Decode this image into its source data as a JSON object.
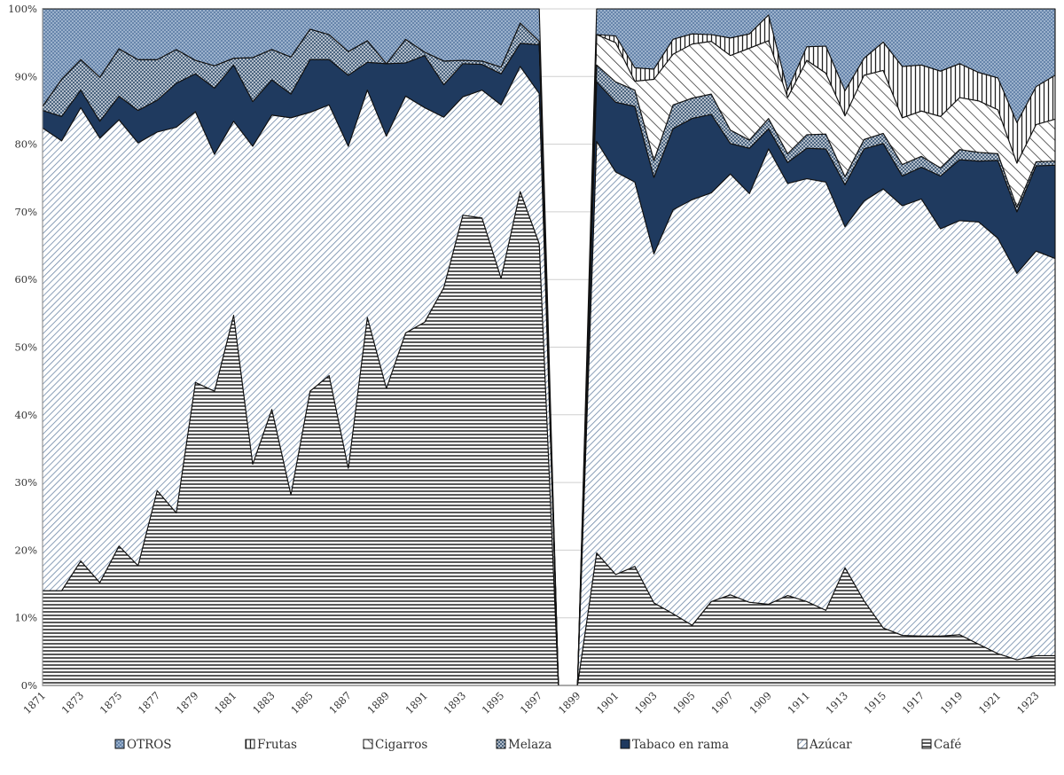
{
  "chart_data": {
    "type": "area",
    "stacked": true,
    "percent": true,
    "x": [
      1871,
      1872,
      1873,
      1874,
      1875,
      1876,
      1877,
      1878,
      1879,
      1880,
      1881,
      1882,
      1883,
      1884,
      1885,
      1886,
      1887,
      1888,
      1889,
      1890,
      1891,
      1892,
      1893,
      1894,
      1895,
      1896,
      1897,
      1898,
      1899,
      1900,
      1901,
      1902,
      1903,
      1904,
      1905,
      1906,
      1907,
      1908,
      1909,
      1910,
      1911,
      1912,
      1913,
      1914,
      1915,
      1916,
      1917,
      1918,
      1919,
      1920,
      1921,
      1922,
      1923,
      1924
    ],
    "x_tick_labels": [
      "1871",
      "1873",
      "1875",
      "1877",
      "1879",
      "1881",
      "1883",
      "1885",
      "1887",
      "1889",
      "1891",
      "1893",
      "1895",
      "1897",
      "1899",
      "1901",
      "1903",
      "1905",
      "1907",
      "1909",
      "1911",
      "1913",
      "1915",
      "1917",
      "1919",
      "1921",
      "1923"
    ],
    "gap": [
      1898,
      1899
    ],
    "ylim": [
      0,
      100
    ],
    "y_ticks": [
      "0%",
      "10%",
      "20%",
      "30%",
      "40%",
      "50%",
      "60%",
      "70%",
      "80%",
      "90%",
      "100%"
    ],
    "grid": true,
    "legend_position": "bottom",
    "series": [
      {
        "name": "Café",
        "color": "#1a1a1a",
        "values": [
          14,
          14,
          18.4,
          15.2,
          20.6,
          17.7,
          28.8,
          25.5,
          44.8,
          43.5,
          54.7,
          32.7,
          40.8,
          28.2,
          43.5,
          45.8,
          32.1,
          54.4,
          43.9,
          52.1,
          53.7,
          58.8,
          69.5,
          69.1,
          60.2,
          73.0,
          65.3,
          0,
          0,
          19.6,
          16.4,
          17.6,
          12.2,
          10.6,
          8.9,
          12.4,
          13.4,
          12.3,
          12.0,
          13.3,
          12.4,
          11.1,
          17.4,
          12.5,
          8.5,
          7.4,
          7.3,
          7.3,
          7.5,
          6.1,
          4.7,
          3.8,
          4.4,
          4.4
        ]
      },
      {
        "name": "Azúcar",
        "color": "#4e6f93",
        "values": [
          68.4,
          66.5,
          67.0,
          65.7,
          63.0,
          62.5,
          53.0,
          57.0,
          40.0,
          35.0,
          28.7,
          47.0,
          43.5,
          55.7,
          41.2,
          40.0,
          47.6,
          33.6,
          37.3,
          35.0,
          31.7,
          25.2,
          17.5,
          18.9,
          25.6,
          18.5,
          22.2,
          0,
          0,
          60.8,
          59.5,
          56.8,
          51.6,
          59.7,
          62.9,
          60.4,
          62.2,
          60.4,
          67.3,
          60.9,
          62.5,
          63.3,
          50.4,
          59.1,
          64.9,
          63.5,
          64.6,
          60.2,
          61.2,
          62.4,
          61.4,
          57.1,
          59.8,
          58.7
        ]
      },
      {
        "name": "Tabaco en rama",
        "color": "#1f3a5f",
        "values": [
          2.6,
          3.6,
          2.6,
          2.5,
          3.5,
          4.8,
          4.7,
          6.5,
          5.6,
          9.8,
          8.3,
          6.6,
          5.2,
          3.5,
          7.8,
          6.7,
          10.5,
          4.1,
          10.7,
          4.9,
          7.7,
          4.8,
          4.9,
          3.8,
          4.6,
          3.4,
          7.2,
          0,
          0,
          8.8,
          10.3,
          11.2,
          11.3,
          12.0,
          12.0,
          11.6,
          4.5,
          6.7,
          3.0,
          3.1,
          4.5,
          4.9,
          6.2,
          7.7,
          6.7,
          4.4,
          4.7,
          7.8,
          9.0,
          9.0,
          11.5,
          9.1,
          12.6,
          13.8
        ]
      },
      {
        "name": "Melaza",
        "color": "#7a8fa8",
        "values": [
          0.6,
          5.5,
          4.5,
          6.5,
          7.0,
          7.5,
          6.0,
          5.0,
          2.0,
          3.3,
          1.0,
          6.5,
          4.5,
          5.5,
          4.5,
          3.7,
          3.5,
          3.2,
          0.0,
          3.5,
          0.5,
          3.5,
          0.5,
          0.5,
          1.0,
          3.0,
          0.5,
          0,
          0,
          2.5,
          3.0,
          2.4,
          2.5,
          3.5,
          3.0,
          3.0,
          2.0,
          1.2,
          1.5,
          1.3,
          2.0,
          2.2,
          1.2,
          1.4,
          1.5,
          1.7,
          1.6,
          1.2,
          1.5,
          1.3,
          1.0,
          0.7,
          0.6,
          0.6
        ]
      },
      {
        "name": "Cigarros",
        "color": "#dddddd",
        "values": [
          0,
          0,
          0,
          0,
          0,
          0,
          0,
          0,
          0,
          0,
          0,
          0,
          0,
          0,
          0,
          0,
          0,
          0,
          0,
          0,
          0,
          0,
          0,
          0,
          0,
          0,
          0,
          0,
          0,
          4.5,
          5.8,
          1.3,
          12.0,
          7.5,
          8.0,
          7.8,
          11.0,
          13.6,
          11.5,
          8.3,
          11.0,
          9.0,
          9.0,
          9.5,
          9.3,
          6.9,
          6.7,
          7.6,
          7.7,
          7.6,
          6.5,
          6.5,
          5.5,
          6.2
        ]
      },
      {
        "name": "Frutas",
        "color": "#ffffff",
        "values": [
          0,
          0,
          0,
          0,
          0,
          0,
          0,
          0,
          0,
          0,
          0,
          0,
          0,
          0,
          0,
          0,
          0,
          0,
          0,
          0,
          0,
          0,
          0,
          0,
          0,
          0,
          0,
          0,
          0,
          0,
          1.0,
          2.0,
          1.5,
          2.2,
          1.5,
          1.0,
          2.6,
          2.1,
          3.8,
          1.1,
          2.0,
          4.0,
          3.7,
          2.5,
          4.2,
          7.6,
          6.8,
          6.7,
          5.0,
          4.2,
          4.7,
          6.0,
          5.6,
          6.5
        ]
      },
      {
        "name": "OTROS",
        "color": "#b7c6d8",
        "values": [
          14.4,
          10.4,
          7.5,
          10.1,
          5.9,
          7.5,
          7.5,
          6.0,
          7.6,
          8.4,
          7.3,
          7.2,
          6.0,
          7.1,
          3.0,
          3.8,
          6.3,
          4.7,
          8.1,
          4.5,
          6.4,
          7.7,
          7.6,
          7.7,
          8.6,
          2.1,
          4.8,
          0,
          0,
          3.8,
          4.0,
          8.7,
          8.9,
          4.5,
          3.7,
          3.8,
          4.3,
          3.7,
          0.9,
          12.0,
          5.6,
          5.5,
          12.1,
          7.3,
          4.9,
          8.5,
          8.3,
          9.2,
          8.1,
          9.4,
          10.2,
          16.8,
          11.5,
          9.8
        ]
      }
    ]
  }
}
